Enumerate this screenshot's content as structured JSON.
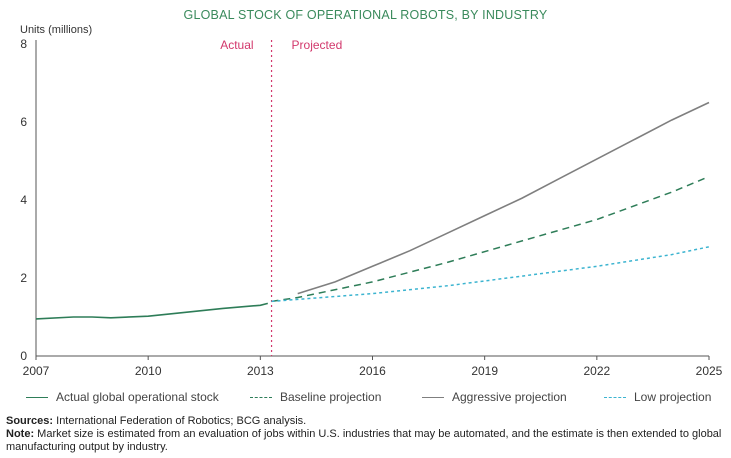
{
  "chart_data": {
    "type": "line",
    "title": "GLOBAL STOCK OF OPERATIONAL ROBOTS, BY INDUSTRY",
    "ylabel": "Units (millions)",
    "xlabel": "",
    "xlim": [
      2007,
      2025
    ],
    "ylim": [
      0,
      8
    ],
    "xticks": [
      "2007",
      "2010",
      "2013",
      "2016",
      "2019",
      "2022",
      "2025"
    ],
    "yticks": [
      "0",
      "2",
      "4",
      "6",
      "8"
    ],
    "divider": {
      "x": 2013.3,
      "left_label": "Actual",
      "right_label": "Projected"
    },
    "series": [
      {
        "name": "Actual global operational stock",
        "style": "solid",
        "color": "#2e7d58",
        "x": [
          2007,
          2008,
          2008.5,
          2009,
          2010,
          2011,
          2012,
          2013,
          2013.2
        ],
        "y": [
          0.95,
          1.0,
          1.0,
          0.98,
          1.02,
          1.12,
          1.22,
          1.3,
          1.35
        ]
      },
      {
        "name": "Baseline projection",
        "style": "dashed",
        "color": "#2e7d58",
        "x": [
          2013.3,
          2014,
          2016,
          2018,
          2020,
          2022,
          2024,
          2025
        ],
        "y": [
          1.4,
          1.5,
          1.9,
          2.4,
          2.95,
          3.5,
          4.2,
          4.6
        ]
      },
      {
        "name": "Aggressive projection",
        "style": "solid",
        "color": "#7f7f7f",
        "x": [
          2014,
          2015,
          2016,
          2017,
          2018,
          2019,
          2020,
          2021,
          2022,
          2023,
          2024,
          2025
        ],
        "y": [
          1.6,
          1.9,
          2.3,
          2.7,
          3.15,
          3.6,
          4.05,
          4.55,
          5.05,
          5.55,
          6.05,
          6.5
        ]
      },
      {
        "name": "Low projection",
        "style": "dotted",
        "color": "#3cb4d0",
        "x": [
          2013.3,
          2014,
          2016,
          2018,
          2020,
          2022,
          2024,
          2025
        ],
        "y": [
          1.4,
          1.45,
          1.6,
          1.8,
          2.05,
          2.3,
          2.6,
          2.8
        ]
      }
    ]
  },
  "footer": {
    "sources_label": "Sources:",
    "sources_text": " International Federation of Robotics; BCG analysis.",
    "note_label": "Note:",
    "note_text": " Market size is estimated from an evaluation of jobs within U.S. industries that may be automated, and the estimate is then extended to global manufacturing output by industry."
  }
}
